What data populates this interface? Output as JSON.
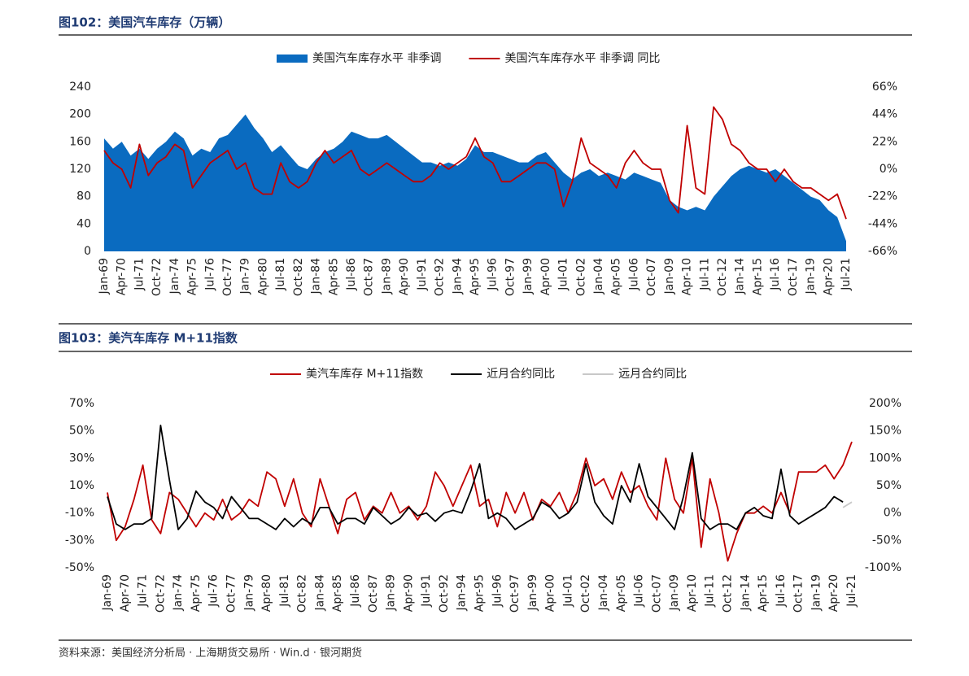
{
  "footer": "资料来源：美国经济分析局 · 上海期货交易所 · Win.d · 银河期货",
  "chart_data": [
    {
      "type": "area_line",
      "title": "图102：美国汽车库存（万辆）",
      "categories": [
        "Jan-69",
        null,
        "Apr-70",
        null,
        "Jul-71",
        null,
        "Oct-72",
        null,
        "Jan-74",
        null,
        "Apr-75",
        null,
        "Jul-76",
        null,
        "Oct-77",
        null,
        "Jan-79",
        null,
        "Apr-80",
        null,
        "Jul-81",
        null,
        "Oct-82",
        null,
        "Jan-84",
        null,
        "Apr-85",
        null,
        "Jul-86",
        null,
        "Oct-87",
        null,
        "Jan-89",
        null,
        "Apr-90",
        null,
        "Jul-91",
        null,
        "Oct-92",
        null,
        "Jan-94",
        null,
        "Apr-95",
        null,
        "Jul-96",
        null,
        "Oct-97",
        null,
        "Jan-99",
        null,
        "Apr-00",
        null,
        "Jul-01",
        null,
        "Oct-02",
        null,
        "Jan-04",
        null,
        "Apr-05",
        null,
        "Jul-06",
        null,
        "Oct-07",
        null,
        "Jan-09",
        null,
        "Apr-10",
        null,
        "Jul-11",
        null,
        "Oct-12",
        null,
        "Jan-14",
        null,
        "Apr-15",
        null,
        "Jul-16",
        null,
        "Oct-17",
        null,
        "Jan-19",
        null,
        "Apr-20",
        null,
        "Jul-21"
      ],
      "series": [
        {
          "name": "美国汽车库存水平 非季调",
          "color": "#0a6bc0",
          "kind": "area",
          "values": [
            165,
            150,
            160,
            140,
            150,
            135,
            150,
            160,
            175,
            165,
            140,
            150,
            145,
            165,
            170,
            185,
            200,
            180,
            165,
            145,
            155,
            140,
            125,
            120,
            135,
            145,
            150,
            160,
            175,
            170,
            165,
            165,
            170,
            160,
            150,
            140,
            130,
            130,
            125,
            130,
            125,
            135,
            155,
            145,
            145,
            140,
            135,
            130,
            130,
            140,
            145,
            130,
            115,
            105,
            115,
            120,
            110,
            115,
            110,
            105,
            115,
            110,
            105,
            100,
            75,
            65,
            60,
            65,
            60,
            80,
            95,
            110,
            120,
            125,
            120,
            115,
            120,
            110,
            100,
            90,
            80,
            75,
            60,
            50,
            15
          ]
        },
        {
          "name": "美国汽车库存水平 非季调 同比",
          "color": "#c00000",
          "kind": "line",
          "axis": "y2",
          "values": [
            15,
            5,
            0,
            -15,
            20,
            -5,
            5,
            10,
            20,
            15,
            -15,
            -5,
            5,
            10,
            15,
            0,
            5,
            -15,
            -20,
            -20,
            5,
            -10,
            -15,
            -10,
            5,
            15,
            5,
            10,
            15,
            0,
            -5,
            0,
            5,
            0,
            -5,
            -10,
            -10,
            -5,
            5,
            0,
            5,
            10,
            25,
            10,
            5,
            -10,
            -10,
            -5,
            0,
            5,
            5,
            0,
            -30,
            -10,
            25,
            5,
            0,
            -5,
            -15,
            5,
            15,
            5,
            0,
            0,
            -25,
            -35,
            35,
            -15,
            -20,
            50,
            40,
            20,
            15,
            5,
            0,
            0,
            -10,
            0,
            -10,
            -15,
            -15,
            -20,
            -25,
            -20,
            -40
          ]
        }
      ],
      "ylim": [
        0,
        240
      ],
      "yticks": [
        0,
        40,
        80,
        120,
        160,
        200,
        240
      ],
      "y2lim": [
        -66,
        66
      ],
      "y2ticks": [
        {
          "value": -66,
          "label": "-66%"
        },
        {
          "value": -44,
          "label": "-44%"
        },
        {
          "value": -22,
          "label": "-22%"
        },
        {
          "value": 0,
          "label": "0%"
        },
        {
          "value": 22,
          "label": "22%"
        },
        {
          "value": 44,
          "label": "44%"
        },
        {
          "value": 66,
          "label": "66%"
        }
      ]
    },
    {
      "type": "line",
      "title": "图103：美汽车库存 M+11指数",
      "categories": [
        "Jan-69",
        null,
        "Apr-70",
        null,
        "Jul-71",
        null,
        "Oct-72",
        null,
        "Jan-74",
        null,
        "Apr-75",
        null,
        "Jul-76",
        null,
        "Oct-77",
        null,
        "Jan-79",
        null,
        "Apr-80",
        null,
        "Jul-81",
        null,
        "Oct-82",
        null,
        "Jan-84",
        null,
        "Apr-85",
        null,
        "Jul-86",
        null,
        "Oct-87",
        null,
        "Jan-89",
        null,
        "Apr-90",
        null,
        "Jul-91",
        null,
        "Oct-92",
        null,
        "Jan-94",
        null,
        "Apr-95",
        null,
        "Jul-96",
        null,
        "Oct-97",
        null,
        "Jan-99",
        null,
        "Apr-00",
        null,
        "Jul-01",
        null,
        "Oct-02",
        null,
        "Jan-04",
        null,
        "Apr-05",
        null,
        "Jul-06",
        null,
        "Oct-07",
        null,
        "Jan-09",
        null,
        "Apr-10",
        null,
        "Jul-11",
        null,
        "Oct-12",
        null,
        "Jan-14",
        null,
        "Apr-15",
        null,
        "Jul-16",
        null,
        "Oct-17",
        null,
        "Jan-19",
        null,
        "Apr-20",
        null,
        "Jul-21"
      ],
      "series": [
        {
          "name": "美汽车库存 M+11指数",
          "color": "#c00000",
          "kind": "line",
          "values": [
            5,
            -30,
            -20,
            0,
            25,
            -15,
            -25,
            5,
            0,
            -10,
            -20,
            -10,
            -15,
            0,
            -15,
            -10,
            0,
            -5,
            20,
            15,
            -5,
            15,
            -10,
            -20,
            15,
            -5,
            -25,
            0,
            5,
            -15,
            -5,
            -10,
            5,
            -10,
            -5,
            -15,
            -5,
            20,
            10,
            -5,
            10,
            25,
            -5,
            0,
            -20,
            5,
            -10,
            5,
            -15,
            0,
            -5,
            5,
            -10,
            5,
            30,
            10,
            15,
            0,
            20,
            5,
            10,
            -5,
            -15,
            30,
            0,
            -10,
            30,
            -35,
            15,
            -10,
            -45,
            -25,
            -10,
            -10,
            -5,
            -10,
            5,
            -10,
            20,
            20,
            20,
            25,
            15,
            25,
            42
          ]
        },
        {
          "name": "近月合约同比",
          "color": "#000000",
          "kind": "line",
          "axis": "y2",
          "values": [
            30,
            -20,
            -30,
            -20,
            -20,
            -10,
            160,
            60,
            -30,
            -10,
            40,
            20,
            10,
            -10,
            30,
            10,
            -10,
            -10,
            -20,
            -30,
            -10,
            -25,
            -10,
            -20,
            10,
            10,
            -20,
            -10,
            -10,
            -20,
            10,
            -5,
            -20,
            -10,
            10,
            -5,
            0,
            -15,
            0,
            5,
            0,
            40,
            90,
            -10,
            0,
            -10,
            -30,
            -20,
            -10,
            20,
            10,
            -10,
            0,
            20,
            90,
            20,
            -5,
            -20,
            50,
            20,
            90,
            30,
            10,
            -10,
            -30,
            30,
            110,
            -10,
            -30,
            -20,
            -20,
            -30,
            0,
            10,
            -5,
            -10,
            80,
            -5,
            -20,
            -10,
            0,
            10,
            30,
            20,
            null
          ]
        },
        {
          "name": "远月合约同比",
          "color": "#c8c8c8",
          "kind": "line",
          "axis": "y2",
          "values": [
            null,
            null,
            null,
            null,
            null,
            null,
            null,
            null,
            null,
            null,
            null,
            null,
            null,
            null,
            null,
            null,
            null,
            null,
            null,
            null,
            null,
            null,
            null,
            null,
            null,
            null,
            null,
            null,
            null,
            null,
            null,
            null,
            null,
            null,
            null,
            null,
            null,
            null,
            null,
            null,
            null,
            null,
            null,
            null,
            null,
            null,
            null,
            null,
            null,
            null,
            null,
            null,
            null,
            null,
            null,
            null,
            null,
            null,
            null,
            null,
            null,
            null,
            null,
            null,
            null,
            null,
            null,
            null,
            null,
            null,
            null,
            null,
            null,
            null,
            null,
            null,
            null,
            null,
            null,
            null,
            null,
            null,
            null,
            10,
            20
          ]
        }
      ],
      "ylim": [
        -50,
        70
      ],
      "yticks": [
        {
          "value": -50,
          "label": "-50%"
        },
        {
          "value": -30,
          "label": "-30%"
        },
        {
          "value": -10,
          "label": "-10%"
        },
        {
          "value": 10,
          "label": "10%"
        },
        {
          "value": 30,
          "label": "30%"
        },
        {
          "value": 50,
          "label": "50%"
        },
        {
          "value": 70,
          "label": "70%"
        }
      ],
      "y2lim": [
        -100,
        200
      ],
      "y2ticks": [
        {
          "value": -100,
          "label": "-100%"
        },
        {
          "value": -50,
          "label": "-50%"
        },
        {
          "value": 0,
          "label": "0%"
        },
        {
          "value": 50,
          "label": "50%"
        },
        {
          "value": 100,
          "label": "100%"
        },
        {
          "value": 150,
          "label": "150%"
        },
        {
          "value": 200,
          "label": "200%"
        }
      ]
    }
  ]
}
